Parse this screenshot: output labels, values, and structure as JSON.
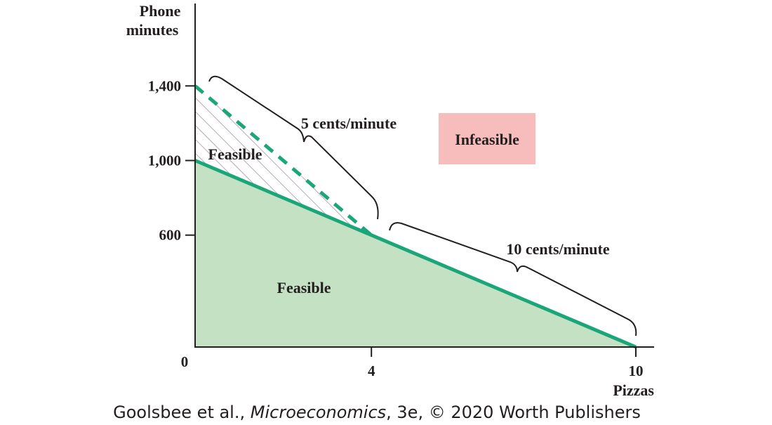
{
  "colors": {
    "budget_line": "#1aa679",
    "feasible_fill": "#c4e2c3",
    "hatch": "#b6a9b9",
    "infeasible_box": "#f7bdbd",
    "axis": "#231f20",
    "text": "#231f20"
  },
  "chart_data": {
    "type": "line",
    "xlabel": "Pizzas",
    "ylabel_line1": "Phone",
    "ylabel_line2": "minutes",
    "xlim": [
      0,
      10.4
    ],
    "ylim": [
      0,
      1600
    ],
    "x_ticks": [
      {
        "value": 0,
        "label": "0"
      },
      {
        "value": 4,
        "label": "4"
      },
      {
        "value": 10,
        "label": "10"
      }
    ],
    "y_ticks": [
      {
        "value": 1400,
        "label": "1,400"
      },
      {
        "value": 1000,
        "label": "1,000"
      },
      {
        "value": 600,
        "label": "600"
      }
    ],
    "series": [
      {
        "style": "solid",
        "points": [
          [
            0,
            1000
          ],
          [
            4,
            600
          ],
          [
            10,
            0
          ]
        ]
      },
      {
        "style": "dashed",
        "points": [
          [
            0,
            1400
          ],
          [
            4,
            600
          ]
        ]
      }
    ],
    "regions": [
      {
        "label": "Feasible",
        "kind": "filled"
      },
      {
        "label": "Feasible",
        "kind": "hatched"
      },
      {
        "label": "Infeasible",
        "kind": "box"
      }
    ],
    "annotations": [
      {
        "text": "5 cents/minute"
      },
      {
        "text": "10 cents/minute"
      }
    ],
    "grid": false
  },
  "credit": {
    "authors": "Goolsbee et al., ",
    "book": "Microeconomics",
    "edition": ", 3e, © 2020 Worth Publishers"
  }
}
